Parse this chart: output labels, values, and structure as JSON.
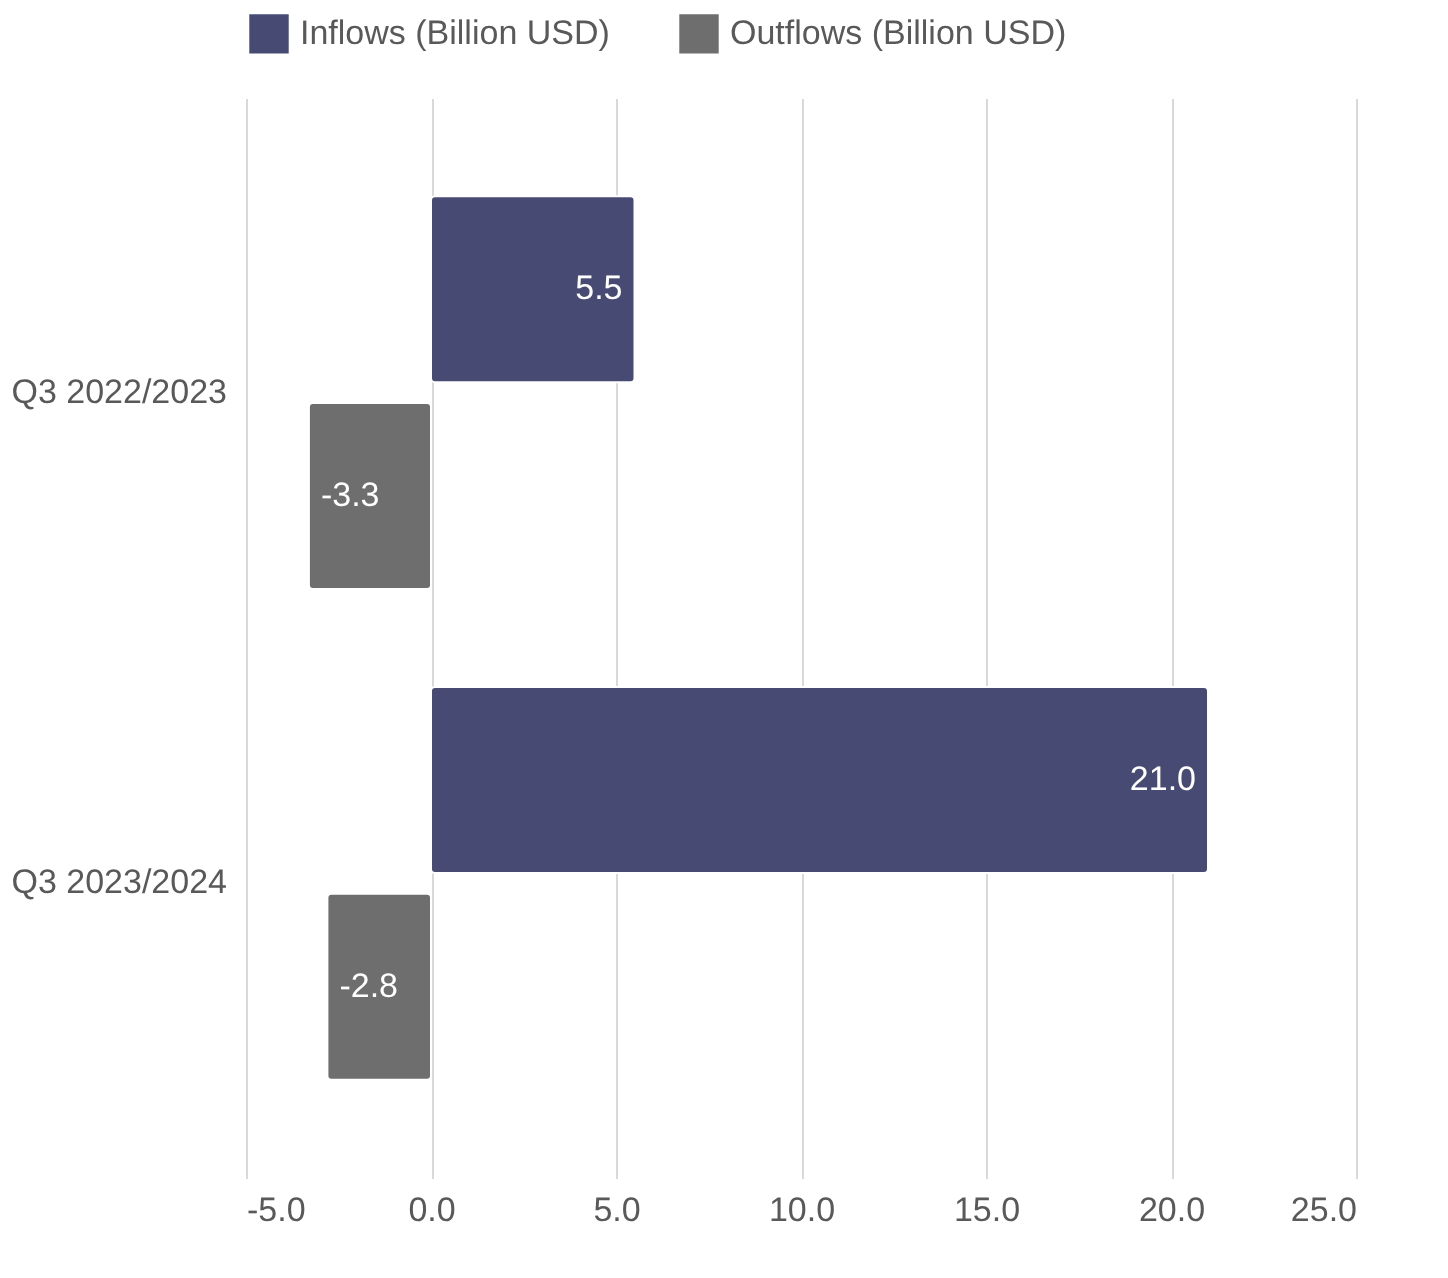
{
  "chart_data": {
    "type": "bar",
    "orientation": "horizontal",
    "categories": [
      "Q3 2022/2023",
      "Q3 2023/2024"
    ],
    "series": [
      {
        "name": "Inflows (Billion USD)",
        "color": "#474b73",
        "values": [
          5.5,
          21.0
        ],
        "value_labels": [
          "5.5",
          "21.0"
        ]
      },
      {
        "name": "Outflows (Billion USD)",
        "color": "#6e6e6e",
        "values": [
          -3.3,
          -2.8
        ],
        "value_labels": [
          "-3.3",
          "-2.8"
        ]
      }
    ],
    "xlim": [
      -5,
      25
    ],
    "xticks": [
      {
        "value": -5,
        "label": "-5.0"
      },
      {
        "value": 0,
        "label": "0.0"
      },
      {
        "value": 5,
        "label": "5.0"
      },
      {
        "value": 10,
        "label": "10.0"
      },
      {
        "value": 15,
        "label": "15.0"
      },
      {
        "value": 20,
        "label": "20.0"
      },
      {
        "value": 25,
        "label": "25.0"
      }
    ],
    "grid": "x",
    "legend": "top"
  }
}
